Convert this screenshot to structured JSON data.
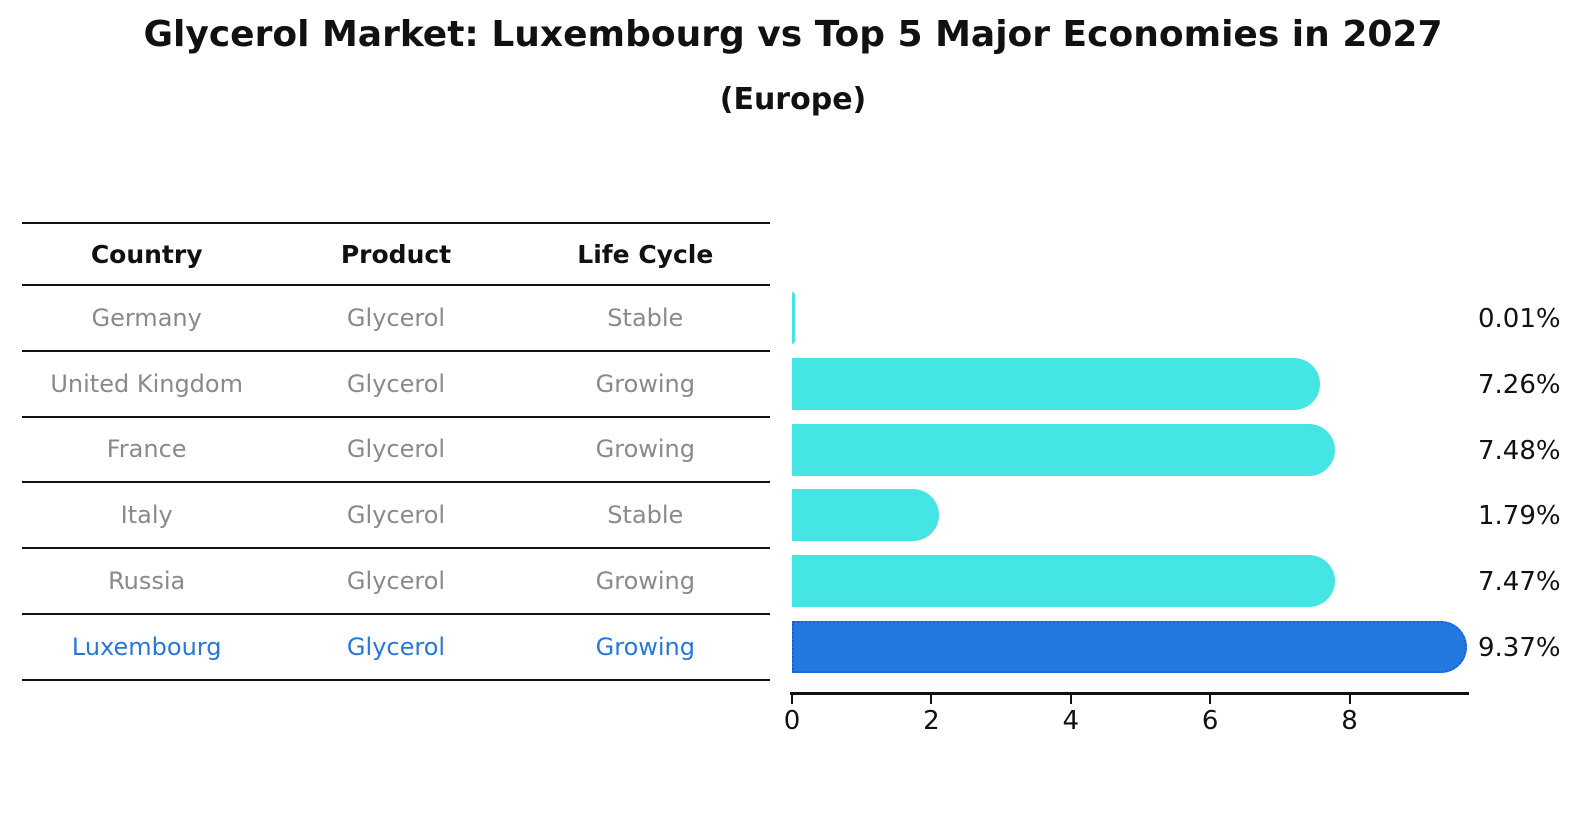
{
  "header": {
    "title": "Glycerol Market: Luxembourg vs Top 5 Major Economies in 2027",
    "subtitle": "(Europe)"
  },
  "table": {
    "columns": [
      "Country",
      "Product",
      "Life Cycle"
    ],
    "rows": [
      {
        "country": "Germany",
        "product": "Glycerol",
        "life_cycle": "Stable",
        "highlight": false
      },
      {
        "country": "United Kingdom",
        "product": "Glycerol",
        "life_cycle": "Growing",
        "highlight": false
      },
      {
        "country": "France",
        "product": "Glycerol",
        "life_cycle": "Growing",
        "highlight": false
      },
      {
        "country": "Italy",
        "product": "Glycerol",
        "life_cycle": "Stable",
        "highlight": false
      },
      {
        "country": "Russia",
        "product": "Glycerol",
        "life_cycle": "Growing",
        "highlight": false
      },
      {
        "country": "Luxembourg",
        "product": "Glycerol",
        "life_cycle": "Growing",
        "highlight": true
      }
    ]
  },
  "chart_data": {
    "type": "bar",
    "orientation": "horizontal",
    "title": "Glycerol Market: Luxembourg vs Top 5 Major Economies in 2027",
    "subtitle": "(Europe)",
    "categories": [
      "Germany",
      "United Kingdom",
      "France",
      "Italy",
      "Russia",
      "Luxembourg"
    ],
    "values": [
      0.01,
      7.26,
      7.48,
      1.79,
      7.47,
      9.37
    ],
    "value_labels": [
      "0.01%",
      "7.26%",
      "7.48%",
      "1.79%",
      "7.47%",
      "9.37%"
    ],
    "xticks": [
      0,
      2,
      4,
      6,
      8
    ],
    "xlim": [
      0,
      9.7
    ],
    "xlabel": "",
    "ylabel": "",
    "grid": false,
    "legend": false,
    "highlight_index": 5,
    "bar_color": "#45E5E3",
    "highlight_color": "#2379DF",
    "highlight_border_color": "#1A5FD0"
  },
  "colors": {
    "muted_text": "#8a8a8a",
    "highlight_text": "#2878D8",
    "line": "#111111"
  }
}
